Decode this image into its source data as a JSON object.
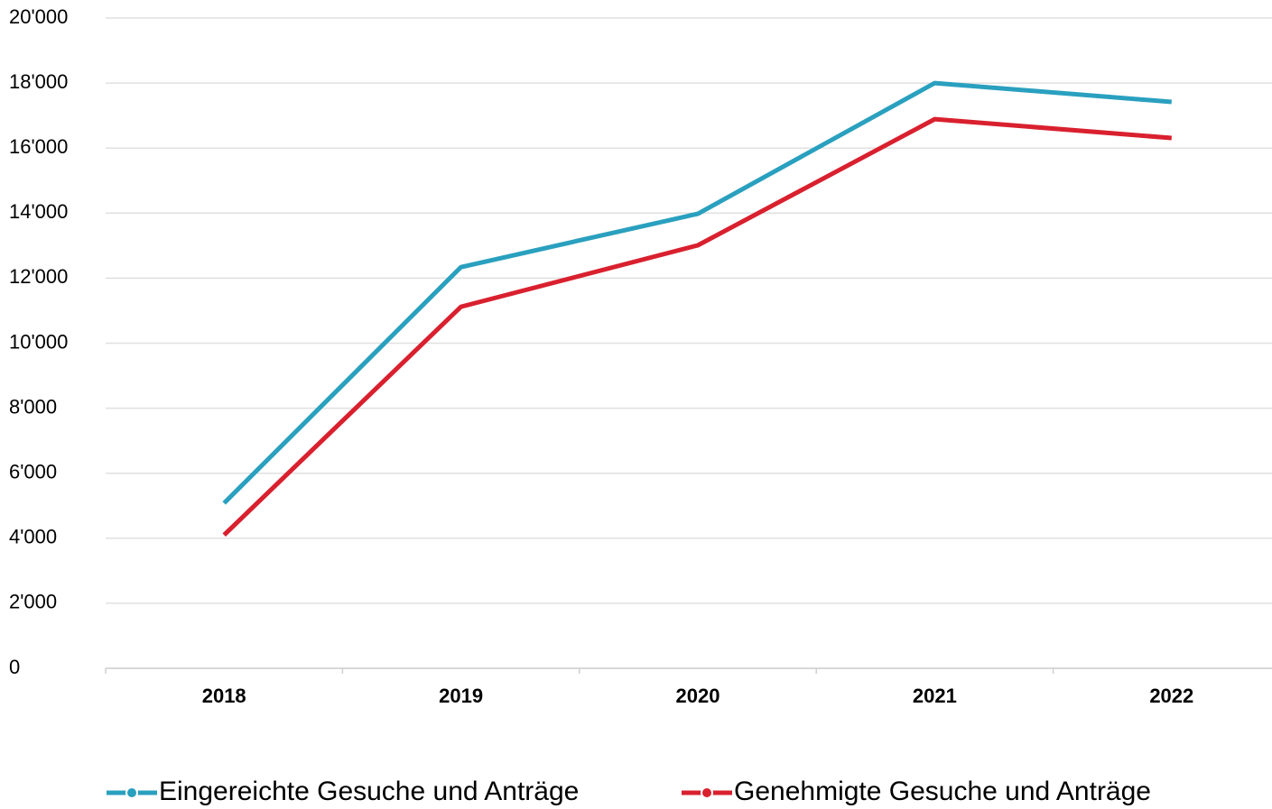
{
  "chart_data": {
    "type": "line",
    "categories": [
      "2018",
      "2019",
      "2020",
      "2021",
      "2022"
    ],
    "series": [
      {
        "name": "Eingereichte Gesuche und Anträge",
        "color": "#2aa0bf",
        "values": [
          5080,
          12340,
          13980,
          18000,
          17420
        ]
      },
      {
        "name": "Genehmigte Gesuche und Anträge",
        "color": "#d9202e",
        "values": [
          4100,
          11120,
          13010,
          16890,
          16310
        ]
      }
    ],
    "ylim": [
      0,
      20000
    ],
    "yticks": [
      0,
      {
        "value": 2000,
        "label": "2'000"
      },
      {
        "value": 4000,
        "label": "4'000"
      },
      {
        "value": 6000,
        "label": "6'000"
      },
      {
        "value": 8000,
        "label": "8'000"
      },
      {
        "value": 10000,
        "label": "10'000"
      },
      {
        "value": 12000,
        "label": "12'000"
      },
      {
        "value": 14000,
        "label": "14'000"
      },
      {
        "value": 16000,
        "label": "16'000"
      },
      {
        "value": 18000,
        "label": "18'000"
      },
      {
        "value": 20000,
        "label": "20'000"
      }
    ],
    "grid": true,
    "legend": "bottom"
  }
}
